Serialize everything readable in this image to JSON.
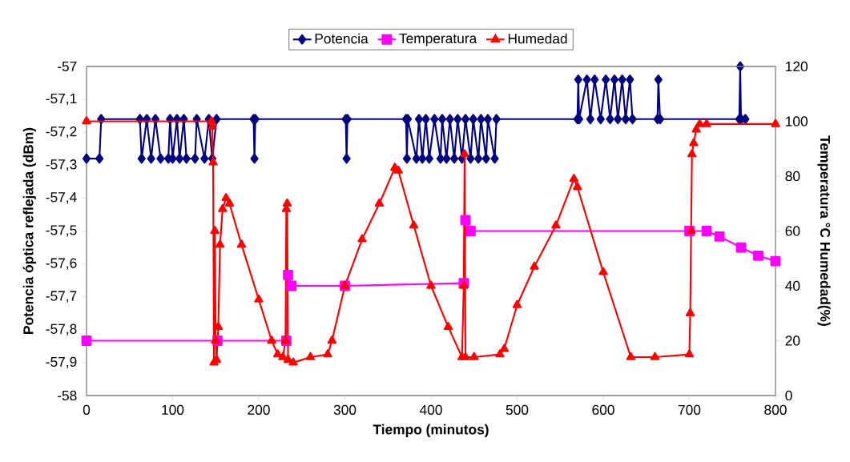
{
  "chart_data": {
    "type": "line",
    "xlabel": "Tiempo (minutos)",
    "ylabel": "Potencia óptica reflejada (dBm)",
    "y2label": "Temperatura °C Humedad(%)",
    "xlim": [
      0,
      800
    ],
    "xticks": [
      0,
      100,
      200,
      300,
      400,
      500,
      600,
      700,
      800
    ],
    "ylim": [
      -58,
      -57
    ],
    "yticks": [
      {
        "value": -58,
        "label": "-58"
      },
      {
        "value": -57.9,
        "label": "-57,9"
      },
      {
        "value": -57.8,
        "label": "-57,8"
      },
      {
        "value": -57.7,
        "label": "-57,7"
      },
      {
        "value": -57.6,
        "label": "-57,6"
      },
      {
        "value": -57.5,
        "label": "-57,5"
      },
      {
        "value": -57.4,
        "label": "-57,4"
      },
      {
        "value": -57.3,
        "label": "-57,3"
      },
      {
        "value": -57.2,
        "label": "-57,2"
      },
      {
        "value": -57.1,
        "label": "-57,1"
      },
      {
        "value": -57,
        "label": "-57"
      }
    ],
    "y2lim": [
      0,
      120
    ],
    "y2ticks": [
      0,
      20,
      40,
      60,
      80,
      100,
      120
    ],
    "legend": "top",
    "grid": false,
    "series": [
      {
        "name": "Potencia",
        "color": "#000080",
        "marker": "diamond",
        "x": [
          0,
          15,
          17,
          62,
          64,
          70,
          75,
          80,
          86,
          95,
          97,
          100,
          105,
          108,
          113,
          116,
          126,
          128,
          137,
          142,
          146,
          151,
          194,
          195,
          196,
          301,
          302,
          303,
          371,
          372,
          373,
          383,
          386,
          390,
          394,
          398,
          404,
          411,
          413,
          418,
          422,
          427,
          431,
          436,
          440,
          446,
          449,
          455,
          458,
          464,
          466,
          474,
          476,
          570,
          571,
          572,
          581,
          585,
          590,
          597,
          603,
          608,
          613,
          617,
          622,
          626,
          631,
          634,
          663,
          664,
          666,
          758,
          759,
          760,
          765
        ],
        "values": [
          -57.28,
          -57.28,
          -57.16,
          -57.16,
          -57.28,
          -57.16,
          -57.28,
          -57.16,
          -57.28,
          -57.28,
          -57.16,
          -57.28,
          -57.16,
          -57.28,
          -57.16,
          -57.28,
          -57.28,
          -57.16,
          -57.28,
          -57.16,
          -57.28,
          -57.16,
          -57.16,
          -57.28,
          -57.16,
          -57.16,
          -57.28,
          -57.16,
          -57.16,
          -57.28,
          -57.16,
          -57.28,
          -57.16,
          -57.28,
          -57.16,
          -57.28,
          -57.16,
          -57.28,
          -57.16,
          -57.28,
          -57.16,
          -57.28,
          -57.16,
          -57.28,
          -57.16,
          -57.28,
          -57.16,
          -57.28,
          -57.16,
          -57.28,
          -57.16,
          -57.28,
          -57.16,
          -57.16,
          -57.04,
          -57.16,
          -57.04,
          -57.16,
          -57.04,
          -57.16,
          -57.04,
          -57.16,
          -57.04,
          -57.16,
          -57.04,
          -57.16,
          -57.04,
          -57.16,
          -57.16,
          -57.04,
          -57.16,
          -57.16,
          -57.0,
          -57.16,
          -57.16
        ]
      },
      {
        "name": "Temperatura",
        "color": "#ff00ff",
        "marker": "square",
        "axis": "y2",
        "x": [
          0,
          152,
          232,
          234,
          238,
          300,
          438,
          440,
          446,
          700,
          720,
          735,
          760,
          780,
          800
        ],
        "values": [
          20,
          20,
          20,
          44,
          40,
          40,
          41,
          64,
          60,
          60,
          60,
          58,
          54,
          51,
          49
        ]
      },
      {
        "name": "Humedad",
        "color": "#ff0000",
        "marker": "triangle",
        "axis": "y2",
        "x": [
          0,
          145,
          146,
          147,
          148,
          149,
          150,
          151,
          153,
          155,
          158,
          162,
          166,
          180,
          200,
          215,
          222,
          228,
          231,
          232,
          233,
          234,
          240,
          260,
          280,
          285,
          300,
          320,
          340,
          358,
          362,
          380,
          400,
          420,
          436,
          438,
          439,
          440,
          450,
          480,
          485,
          500,
          520,
          545,
          566,
          570,
          600,
          632,
          660,
          700,
          701,
          702,
          703,
          705,
          708,
          712,
          720,
          800
        ],
        "values": [
          100,
          100,
          98,
          85,
          12,
          60,
          20,
          13,
          25,
          55,
          68,
          72,
          70,
          55,
          35,
          20,
          15,
          14,
          20,
          68,
          70,
          13,
          12,
          14,
          15,
          20,
          40,
          57,
          70,
          83,
          82,
          62,
          40,
          25,
          14,
          40,
          88,
          14,
          14,
          15,
          17,
          33,
          47,
          62,
          79,
          76,
          45,
          14,
          14,
          15,
          30,
          60,
          88,
          92,
          97,
          99,
          99,
          99
        ]
      }
    ]
  }
}
